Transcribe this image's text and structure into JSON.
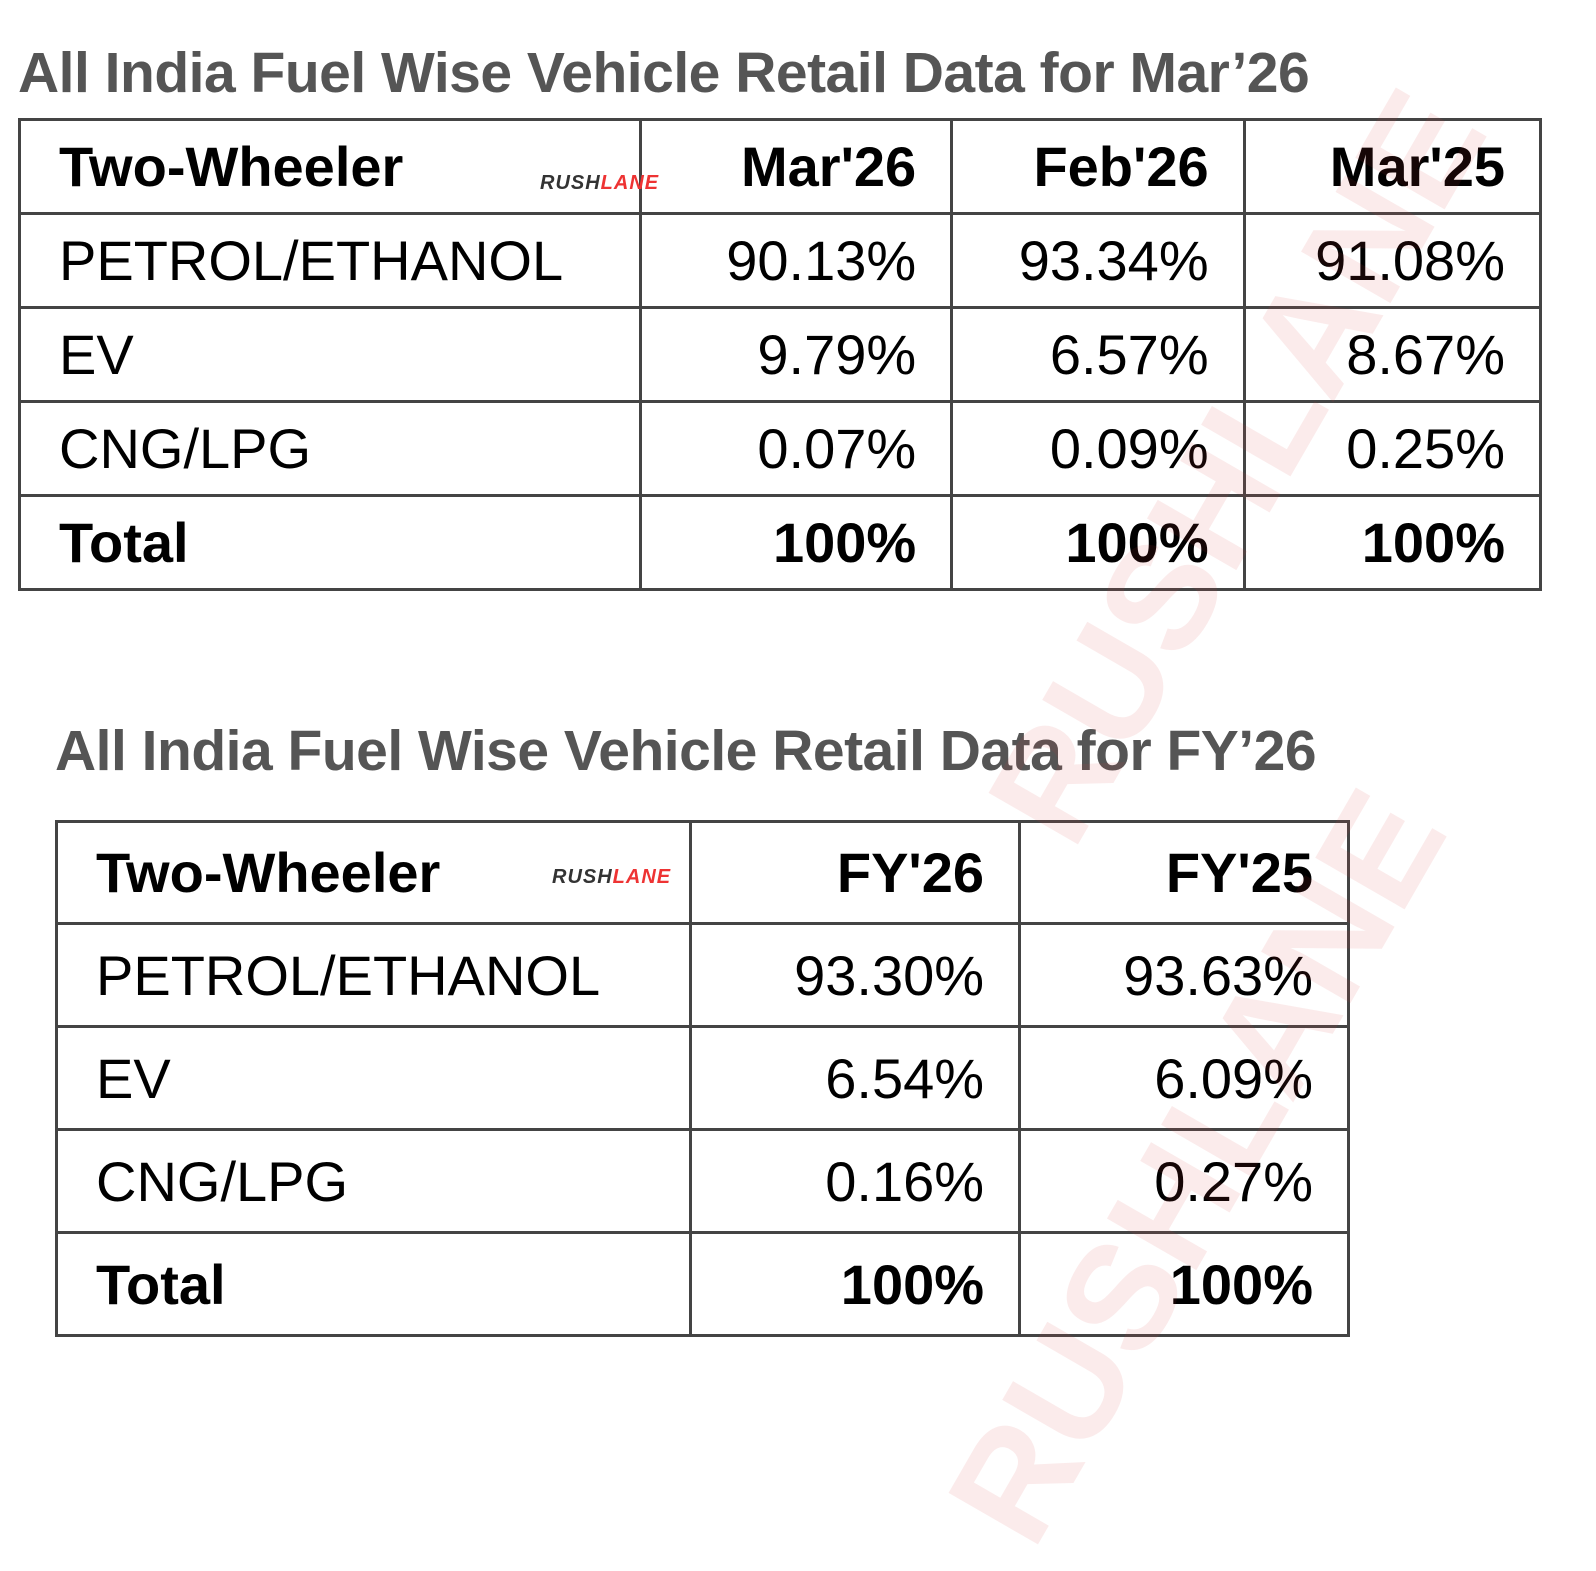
{
  "watermark": "RUSHLANE",
  "table1": {
    "title": "All India Fuel Wise Vehicle Retail Data for Mar’26",
    "headers": [
      "Two-Wheeler",
      "Mar'26",
      "Feb'26",
      "Mar'25"
    ],
    "rows": [
      [
        "PETROL/ETHANOL",
        "90.13%",
        "93.34%",
        "91.08%"
      ],
      [
        "EV",
        "9.79%",
        "6.57%",
        "8.67%"
      ],
      [
        "CNG/LPG",
        "0.07%",
        "0.09%",
        "0.25%"
      ],
      [
        "Total",
        "100%",
        "100%",
        "100%"
      ]
    ]
  },
  "table2": {
    "title": "All India Fuel Wise Vehicle Retail Data for FY’26",
    "headers": [
      "Two-Wheeler",
      "FY'26",
      "FY'25"
    ],
    "rows": [
      [
        "PETROL/ETHANOL",
        "93.30%",
        "93.63%"
      ],
      [
        "EV",
        "6.54%",
        "6.09%"
      ],
      [
        "CNG/LPG",
        "0.16%",
        "0.27%"
      ],
      [
        "Total",
        "100%",
        "100%"
      ]
    ]
  }
}
